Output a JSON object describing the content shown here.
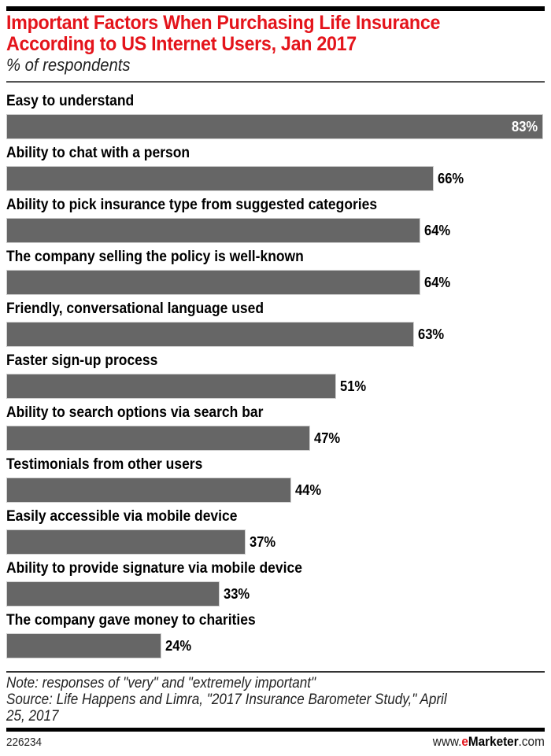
{
  "header": {
    "title_line1": "Important Factors When Purchasing Life Insurance",
    "title_line2": "According to US Internet Users, Jan 2017",
    "subtitle": "% of respondents"
  },
  "rows": [
    {
      "label": "Easy to understand",
      "value": 83,
      "display": "83%"
    },
    {
      "label": "Ability to chat with a person",
      "value": 66,
      "display": "66%"
    },
    {
      "label": "Ability to pick insurance type from suggested categories",
      "value": 64,
      "display": "64%"
    },
    {
      "label": "The company selling the policy is well-known",
      "value": 64,
      "display": "64%"
    },
    {
      "label": "Friendly, conversational language used",
      "value": 63,
      "display": "63%"
    },
    {
      "label": "Faster sign-up process",
      "value": 51,
      "display": "51%"
    },
    {
      "label": "Ability to search options via search bar",
      "value": 47,
      "display": "47%"
    },
    {
      "label": "Testimonials from other users",
      "value": 44,
      "display": "44%"
    },
    {
      "label": "Easily accessible via mobile device",
      "value": 37,
      "display": "37%"
    },
    {
      "label": "Ability to provide signature via mobile device",
      "value": 33,
      "display": "33%"
    },
    {
      "label": "The company gave money to charities",
      "value": 24,
      "display": "24%"
    }
  ],
  "footer": {
    "note": "Note: responses of \"very\" and \"extremely important\"",
    "source_line1": "Source: Life Happens and Limra, \"2017 Insurance Barometer Study,\" April",
    "source_line2": "25, 2017",
    "chart_id": "226234",
    "brand_prefix": "www.",
    "brand_e": "e",
    "brand_name": "Marketer",
    "brand_suffix": ".com"
  },
  "colors": {
    "title": "#e4141b",
    "bar": "#666666",
    "text": "#000000"
  },
  "chart_data": {
    "type": "bar",
    "orientation": "horizontal",
    "title": "Important Factors When Purchasing Life Insurance According to US Internet Users, Jan 2017",
    "subtitle": "% of respondents",
    "categories": [
      "Easy to understand",
      "Ability to chat with a person",
      "Ability to pick insurance type from suggested categories",
      "The company selling the policy is well-known",
      "Friendly, conversational language used",
      "Faster sign-up process",
      "Ability to search options via search bar",
      "Testimonials from other users",
      "Easily accessible via mobile device",
      "Ability to provide signature via mobile device",
      "The company gave money to charities"
    ],
    "values": [
      83,
      66,
      64,
      64,
      63,
      51,
      47,
      44,
      37,
      33,
      24
    ],
    "unit": "%",
    "xlabel": "",
    "ylabel": "",
    "grid": false,
    "legend": null,
    "annotations": [
      "Note: responses of \"very\" and \"extremely important\"",
      "Source: Life Happens and Limra, \"2017 Insurance Barometer Study,\" April 25, 2017"
    ]
  }
}
